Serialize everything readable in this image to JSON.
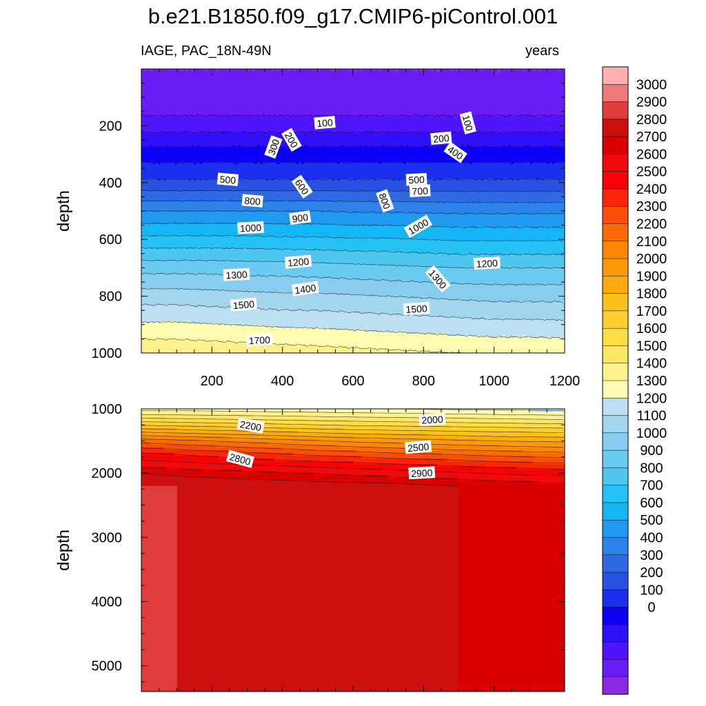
{
  "title": "b.e21.B1850.f09_g17.CMIP6-piControl.001",
  "left_string": "IAGE, PAC_18N-49N",
  "right_string": "years",
  "colors": [
    "#8a2be2",
    "#6a1cf5",
    "#4f14fa",
    "#2f10fa",
    "#0c00f6",
    "#1a30ee",
    "#2a52e2",
    "#2f6ae4",
    "#2d82ea",
    "#1f9af0",
    "#14b6f6",
    "#26c1f3",
    "#4fc6f0",
    "#6bcaf0",
    "#88cdef",
    "#a2d6ef",
    "#bcdff2",
    "#fdfcb0",
    "#fdf08d",
    "#fde666",
    "#fddc44",
    "#fdcf2e",
    "#fcc01c",
    "#fbaa10",
    "#fb9908",
    "#fb8505",
    "#fb6a06",
    "#fb4e08",
    "#fb2508",
    "#fa0007",
    "#f00a0c",
    "#d80000",
    "#cc1010",
    "#e03c3c",
    "#ef7a7a",
    "#ffb0b0"
  ],
  "chart_data": [
    {
      "type": "heatmap",
      "panel": "upper",
      "variable": "IAGE",
      "region": "PAC_18N-49N",
      "units": "years",
      "x": [
        0,
        100,
        200,
        300,
        400,
        500,
        600,
        700,
        800,
        900,
        1000,
        1100,
        1200
      ],
      "xlim": [
        0,
        1200
      ],
      "xticks": [
        200,
        400,
        600,
        800,
        1000,
        1200
      ],
      "ylabel": "depth",
      "ylim": [
        0,
        1000
      ],
      "y_reversed": true,
      "yticks": [
        200,
        400,
        600,
        800,
        1000
      ],
      "depth": [
        0,
        145,
        200,
        300,
        400,
        500,
        600,
        700,
        800,
        1000
      ],
      "values": [
        [
          0,
          0,
          0,
          0,
          0,
          0,
          0,
          0,
          0,
          0,
          0,
          0,
          0
        ],
        [
          70,
          70,
          70,
          70,
          70,
          70,
          70,
          70,
          70,
          70,
          70,
          70,
          70
        ],
        [
          155,
          155,
          155,
          155,
          155,
          155,
          155,
          155,
          155,
          155,
          155,
          155,
          155
        ],
        [
          350,
          350,
          350,
          350,
          350,
          350,
          350,
          350,
          350,
          350,
          350,
          350,
          350
        ],
        [
          520,
          520,
          520,
          520,
          520,
          520,
          520,
          520,
          520,
          520,
          520,
          520,
          520
        ],
        [
          800,
          800,
          800,
          800,
          800,
          800,
          790,
          790,
          785,
          780,
          780,
          780,
          780
        ],
        [
          1030,
          1030,
          1030,
          1030,
          1020,
          1020,
          1010,
          1010,
          1000,
          990,
          990,
          990,
          990
        ],
        [
          1260,
          1260,
          1260,
          1250,
          1250,
          1240,
          1230,
          1220,
          1210,
          1200,
          1200,
          1200,
          1200
        ],
        [
          1450,
          1450,
          1440,
          1430,
          1420,
          1420,
          1410,
          1400,
          1390,
          1380,
          1370,
          1370,
          1370
        ],
        [
          1780,
          1780,
          1770,
          1760,
          1750,
          1740,
          1730,
          1720,
          1710,
          1700,
          1690,
          1690,
          1680
        ]
      ],
      "contour_labels": [
        {
          "value": "100",
          "x": 520,
          "y": 190,
          "angle": -5
        },
        {
          "value": "100",
          "x": 925,
          "y": 190,
          "angle": 75
        },
        {
          "value": "200",
          "x": 425,
          "y": 250,
          "angle": 60
        },
        {
          "value": "200",
          "x": 850,
          "y": 245,
          "angle": -5
        },
        {
          "value": "300",
          "x": 375,
          "y": 275,
          "angle": -70
        },
        {
          "value": "400",
          "x": 890,
          "y": 295,
          "angle": 35
        },
        {
          "value": "500",
          "x": 245,
          "y": 390,
          "angle": 5
        },
        {
          "value": "500",
          "x": 780,
          "y": 390,
          "angle": -3
        },
        {
          "value": "600",
          "x": 455,
          "y": 415,
          "angle": 55
        },
        {
          "value": "700",
          "x": 790,
          "y": 430,
          "angle": -3
        },
        {
          "value": "800",
          "x": 315,
          "y": 465,
          "angle": 5
        },
        {
          "value": "800",
          "x": 690,
          "y": 465,
          "angle": 70
        },
        {
          "value": "900",
          "x": 450,
          "y": 525,
          "angle": -8
        },
        {
          "value": "1000",
          "x": 310,
          "y": 560,
          "angle": -3
        },
        {
          "value": "1000",
          "x": 785,
          "y": 555,
          "angle": -30
        },
        {
          "value": "1200",
          "x": 445,
          "y": 680,
          "angle": -5
        },
        {
          "value": "1200",
          "x": 980,
          "y": 685,
          "angle": -3
        },
        {
          "value": "1300",
          "x": 270,
          "y": 725,
          "angle": -3
        },
        {
          "value": "1300",
          "x": 840,
          "y": 740,
          "angle": 50
        },
        {
          "value": "1400",
          "x": 465,
          "y": 775,
          "angle": -8
        },
        {
          "value": "1500",
          "x": 290,
          "y": 830,
          "angle": -5
        },
        {
          "value": "1500",
          "x": 780,
          "y": 845,
          "angle": -3
        },
        {
          "value": "1700",
          "x": 335,
          "y": 955,
          "angle": -3
        }
      ]
    },
    {
      "type": "heatmap",
      "panel": "lower",
      "ylabel": "depth",
      "ylim": [
        1000,
        5400
      ],
      "y_reversed": true,
      "yticks": [
        1000,
        2000,
        3000,
        4000,
        5000
      ],
      "xlim": [
        0,
        1200
      ],
      "depth": [
        1000,
        1100,
        1300,
        1500,
        1700,
        1800,
        1900,
        2000,
        2200
      ],
      "values": [
        [
          1660,
          1660,
          1650,
          1640,
          1630,
          1620,
          1610,
          1600,
          1590,
          1580,
          1570,
          1570,
          1560
        ],
        [
          1820,
          1810,
          1800,
          1790,
          1780,
          1770,
          1760,
          1750,
          1740,
          1730,
          1720,
          1710,
          1700
        ],
        [
          2180,
          2160,
          2140,
          2120,
          2100,
          2080,
          2060,
          2050,
          2040,
          2030,
          2020,
          2010,
          2000
        ],
        [
          2560,
          2530,
          2500,
          2470,
          2440,
          2410,
          2380,
          2360,
          2340,
          2320,
          2300,
          2290,
          2280
        ],
        [
          2820,
          2790,
          2760,
          2730,
          2700,
          2670,
          2650,
          2620,
          2600,
          2580,
          2560,
          2540,
          2530
        ],
        [
          2900,
          2880,
          2850,
          2820,
          2800,
          2780,
          2760,
          2740,
          2720,
          2700,
          2680,
          2660,
          2650
        ],
        [
          2990,
          2970,
          2950,
          2930,
          2910,
          2890,
          2870,
          2850,
          2830,
          2810,
          2790,
          2770,
          2760
        ],
        [
          3100,
          3070,
          3050,
          3030,
          3010,
          2990,
          2970,
          2950,
          2930,
          2910,
          2890,
          2870,
          2860
        ],
        [
          3200,
          3200,
          3190,
          3180,
          3170,
          3160,
          3150,
          3140,
          3120,
          3100,
          3080,
          3060,
          3050
        ]
      ],
      "contour_labels": [
        {
          "value": "2200",
          "x": 310,
          "y": 1265,
          "angle": 10
        },
        {
          "value": "2000",
          "x": 825,
          "y": 1170,
          "angle": -3
        },
        {
          "value": "2500",
          "x": 785,
          "y": 1600,
          "angle": -5
        },
        {
          "value": "2800",
          "x": 280,
          "y": 1785,
          "angle": 15
        },
        {
          "value": "2900",
          "x": 795,
          "y": 2000,
          "angle": -3
        }
      ]
    },
    {
      "type": "colorbar",
      "levels": [
        0,
        100,
        200,
        300,
        400,
        500,
        600,
        700,
        800,
        900,
        1000,
        1100,
        1200,
        1300,
        1400,
        1500,
        1600,
        1700,
        1800,
        1900,
        2000,
        2100,
        2200,
        2300,
        2400,
        2500,
        2600,
        2700,
        2800,
        2900,
        3000
      ],
      "labels": [
        "3000",
        "2900",
        "2800",
        "2700",
        "2600",
        "2500",
        "2400",
        "2300",
        "2200",
        "2100",
        "2000",
        "1900",
        "1800",
        "1700",
        "1600",
        "1500",
        "1400",
        "1300",
        "1200",
        "1100",
        "1000",
        "900",
        "800",
        "700",
        "600",
        "500",
        "400",
        "300",
        "200",
        "100",
        "0"
      ]
    }
  ]
}
